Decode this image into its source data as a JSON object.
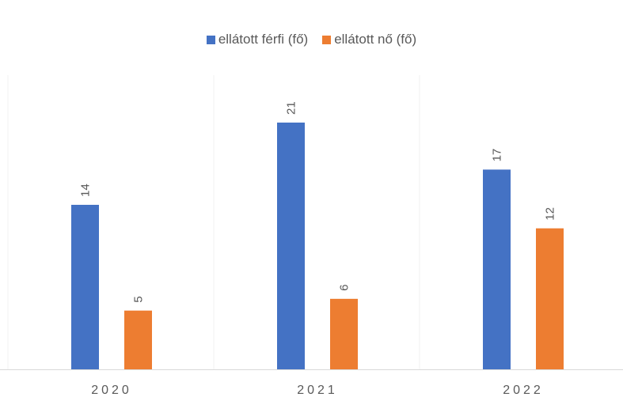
{
  "chart_data": {
    "type": "bar",
    "title": "",
    "xlabel": "",
    "ylabel": "",
    "categories": [
      "2020",
      "2021",
      "2022"
    ],
    "series": [
      {
        "name": "ellátott férfi (fő)",
        "values": [
          14,
          21,
          17
        ],
        "color": "#4472C4"
      },
      {
        "name": "ellátott nő (fő)",
        "values": [
          5,
          6,
          12
        ],
        "color": "#ED7D31"
      }
    ],
    "ylim": [
      0,
      21
    ],
    "grid": false,
    "legend_position": "top",
    "data_labels": true
  }
}
